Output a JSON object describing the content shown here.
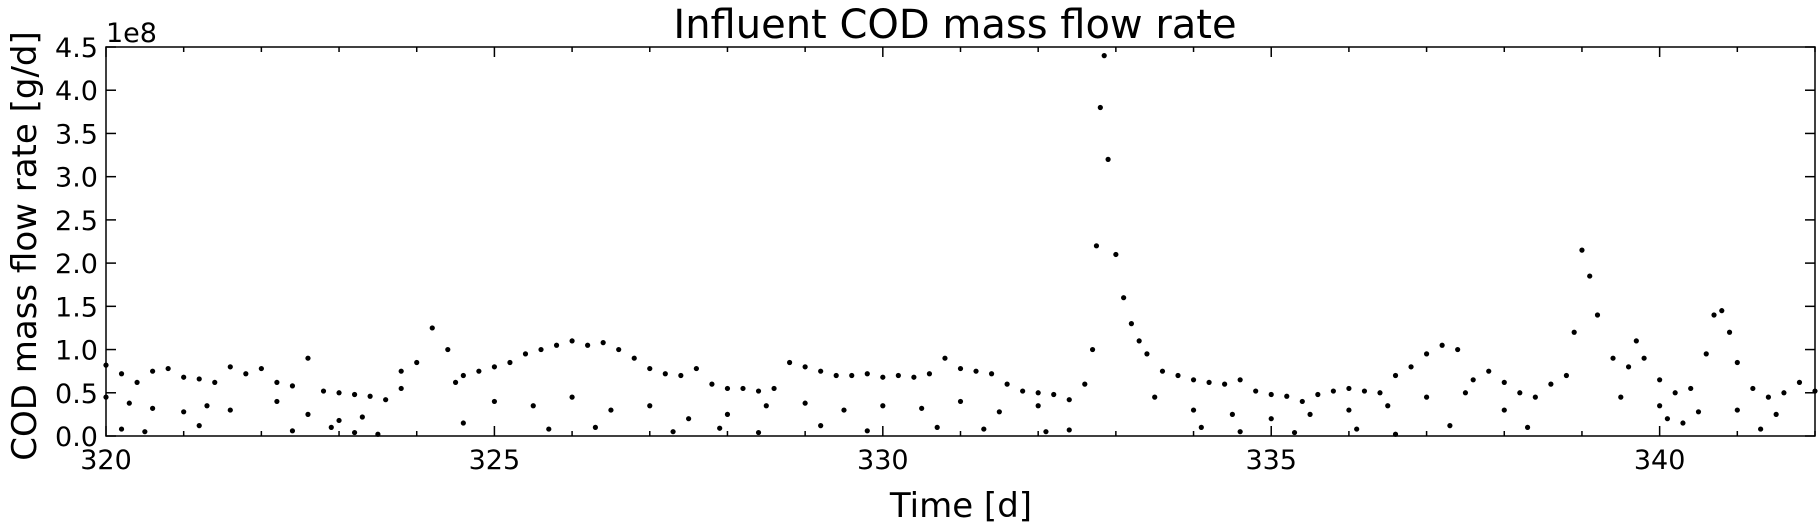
{
  "chart_data": {
    "type": "scatter",
    "title": "Influent COD mass flow rate",
    "xlabel": "Time [d]",
    "ylabel": "COD mass flow rate [g/d]",
    "y_offset_label": "1e8",
    "y_scale": 100000000,
    "xlim": [
      320,
      342
    ],
    "ylim": [
      0,
      4.5
    ],
    "x_ticks": [
      320,
      325,
      330,
      335,
      340
    ],
    "x_minor_step": 1,
    "y_ticks": [
      0.0,
      0.5,
      1.0,
      1.5,
      2.0,
      2.5,
      3.0,
      3.5,
      4.0,
      4.5
    ],
    "x_tick_labels": [
      "320",
      "325",
      "330",
      "335",
      "340"
    ],
    "y_tick_labels": [
      "0.0",
      "0.5",
      "1.0",
      "1.5",
      "2.0",
      "2.5",
      "3.0",
      "3.5",
      "4.0",
      "4.5"
    ],
    "grid": false,
    "marker_color": "#000000",
    "series": [
      {
        "x": [
          320.0,
          320.2,
          320.4,
          320.6,
          320.8,
          321.0,
          321.2,
          321.4,
          321.6,
          321.8,
          322.0,
          322.2,
          322.4,
          322.6,
          322.8,
          323.0,
          323.2,
          323.4,
          323.6,
          323.8,
          324.0,
          324.2,
          324.4,
          324.6,
          324.8,
          325.0,
          325.2,
          325.4,
          325.6,
          325.8,
          326.0,
          326.2,
          326.4,
          326.6,
          326.8,
          327.0,
          327.2,
          327.4,
          327.6,
          327.8,
          328.0,
          328.2,
          328.4,
          328.6,
          328.8,
          329.0,
          329.2,
          329.4,
          329.6,
          329.8,
          330.0,
          330.2,
          330.4,
          330.6,
          330.8,
          331.0,
          331.2,
          331.4,
          331.6,
          331.8,
          332.0,
          332.2,
          332.4,
          332.6,
          332.7,
          332.75,
          332.8,
          332.85,
          332.9,
          333.0,
          333.1,
          333.2,
          333.3,
          333.4,
          333.6,
          333.8,
          334.0,
          334.2,
          334.4,
          334.6,
          334.8,
          335.0,
          335.2,
          335.4,
          335.6,
          335.8,
          336.0,
          336.2,
          336.4,
          336.6,
          336.8,
          337.0,
          337.2,
          337.4,
          337.6,
          337.8,
          338.0,
          338.2,
          338.4,
          338.6,
          338.8,
          338.9,
          339.0,
          339.1,
          339.2,
          339.4,
          339.6,
          339.7,
          339.8,
          340.0,
          340.2,
          340.4,
          340.6,
          340.7,
          340.8,
          340.9,
          341.0,
          341.2,
          341.4,
          341.6,
          341.8,
          342.0
        ],
        "y": [
          0.82,
          0.72,
          0.62,
          0.75,
          0.78,
          0.68,
          0.66,
          0.62,
          0.8,
          0.72,
          0.78,
          0.62,
          0.58,
          0.9,
          0.52,
          0.5,
          0.48,
          0.46,
          0.42,
          0.75,
          0.85,
          1.25,
          1.0,
          0.7,
          0.75,
          0.8,
          0.85,
          0.95,
          1.0,
          1.05,
          1.1,
          1.05,
          1.08,
          1.0,
          0.9,
          0.78,
          0.72,
          0.7,
          0.78,
          0.6,
          0.55,
          0.55,
          0.52,
          0.55,
          0.85,
          0.8,
          0.75,
          0.7,
          0.7,
          0.72,
          0.68,
          0.7,
          0.68,
          0.72,
          0.9,
          0.78,
          0.75,
          0.72,
          0.6,
          0.52,
          0.5,
          0.48,
          0.42,
          0.6,
          1.0,
          2.2,
          3.8,
          4.4,
          3.2,
          2.1,
          1.6,
          1.3,
          1.1,
          0.95,
          0.75,
          0.7,
          0.65,
          0.62,
          0.6,
          0.65,
          0.52,
          0.48,
          0.46,
          0.4,
          0.48,
          0.52,
          0.55,
          0.52,
          0.5,
          0.7,
          0.8,
          0.95,
          1.05,
          1.0,
          0.65,
          0.75,
          0.62,
          0.5,
          0.45,
          0.6,
          0.7,
          1.2,
          2.15,
          1.85,
          1.4,
          0.9,
          0.8,
          1.1,
          0.9,
          0.65,
          0.5,
          0.55,
          0.95,
          1.4,
          1.45,
          1.2,
          0.85,
          0.55,
          0.45,
          0.5,
          0.62,
          0.52
        ]
      },
      {
        "x": [
          320.0,
          320.3,
          320.6,
          321.0,
          321.3,
          321.6,
          322.2,
          322.6,
          323.0,
          323.3,
          323.8,
          324.5,
          325.0,
          325.5,
          326.0,
          326.5,
          327.0,
          327.5,
          328.0,
          328.5,
          329.0,
          329.5,
          330.0,
          330.5,
          331.0,
          331.5,
          332.0,
          333.5,
          334.0,
          334.5,
          335.0,
          335.5,
          336.0,
          336.5,
          337.0,
          337.5,
          338.0,
          339.5,
          340.0,
          340.5,
          341.0,
          341.5
        ],
        "y": [
          0.45,
          0.38,
          0.32,
          0.28,
          0.35,
          0.3,
          0.4,
          0.25,
          0.18,
          0.22,
          0.55,
          0.62,
          0.4,
          0.35,
          0.45,
          0.3,
          0.35,
          0.2,
          0.25,
          0.35,
          0.38,
          0.3,
          0.35,
          0.32,
          0.4,
          0.28,
          0.35,
          0.45,
          0.3,
          0.25,
          0.2,
          0.25,
          0.3,
          0.35,
          0.45,
          0.5,
          0.3,
          0.45,
          0.35,
          0.28,
          0.3,
          0.25
        ]
      },
      {
        "x": [
          320.2,
          320.5,
          321.2,
          322.4,
          322.9,
          323.2,
          323.5,
          324.6,
          325.7,
          326.3,
          327.3,
          327.9,
          328.4,
          329.2,
          329.8,
          330.7,
          331.3,
          332.1,
          332.4,
          334.1,
          334.6,
          335.3,
          336.1,
          336.6,
          337.3,
          338.3,
          340.1,
          340.3,
          341.3
        ],
        "y": [
          0.08,
          0.05,
          0.12,
          0.06,
          0.1,
          0.04,
          0.02,
          0.15,
          0.08,
          0.1,
          0.05,
          0.09,
          0.04,
          0.12,
          0.06,
          0.1,
          0.08,
          0.05,
          0.07,
          0.1,
          0.05,
          0.04,
          0.08,
          0.02,
          0.12,
          0.1,
          0.2,
          0.15,
          0.08
        ]
      }
    ]
  }
}
